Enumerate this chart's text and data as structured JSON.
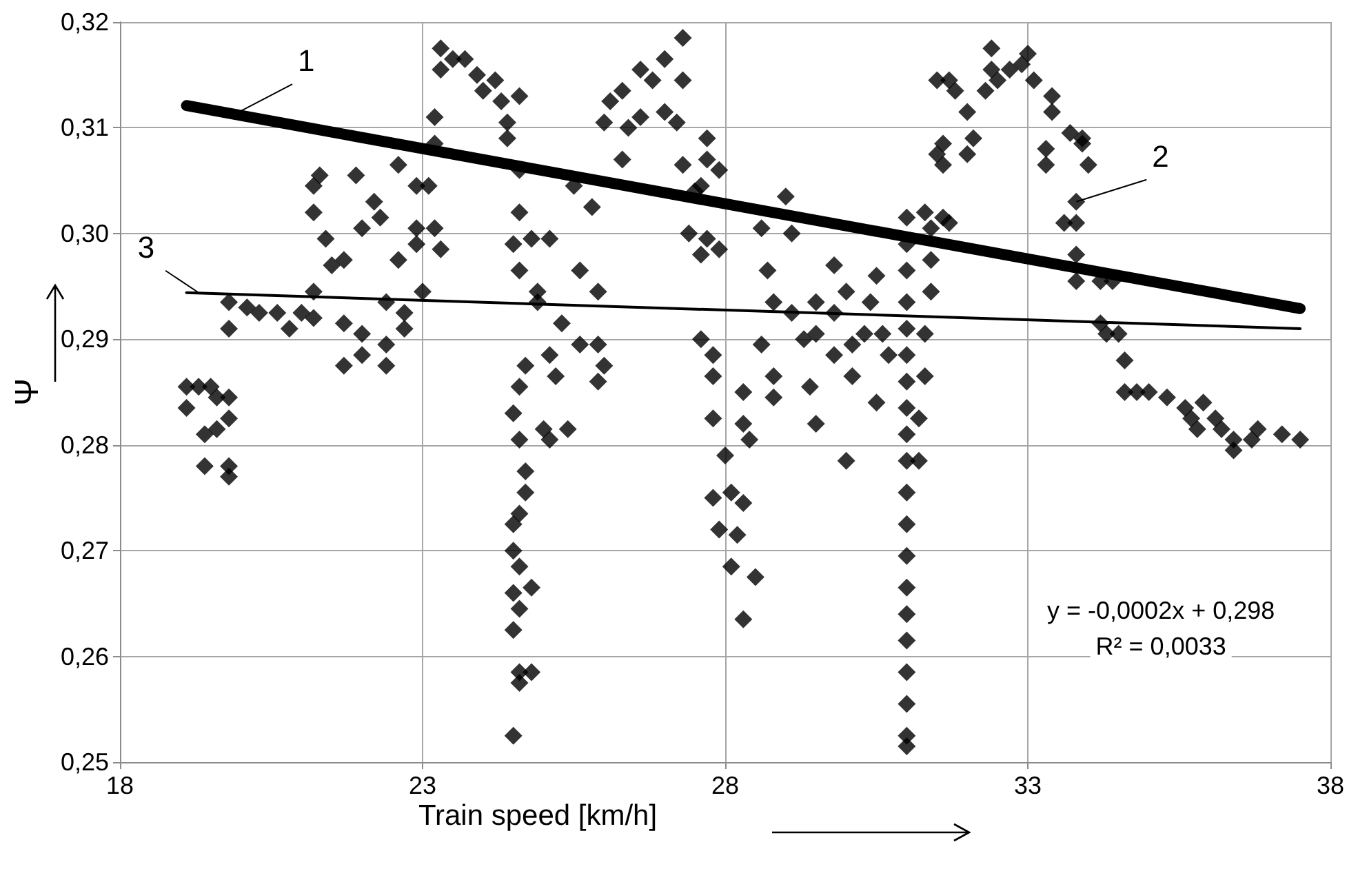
{
  "chart_data": {
    "type": "scatter",
    "xlabel": "Train speed [km/h]",
    "ylabel": "Ψ",
    "xlim": [
      18,
      38
    ],
    "xticks": [
      18,
      23,
      28,
      33,
      38
    ],
    "ylim": [
      0.25,
      0.32
    ],
    "yticks": [
      {
        "value": 0.25,
        "label": "0,25"
      },
      {
        "value": 0.26,
        "label": "0,26"
      },
      {
        "value": 0.27,
        "label": "0,27"
      },
      {
        "value": 0.28,
        "label": "0,28"
      },
      {
        "value": 0.29,
        "label": "0,29"
      },
      {
        "value": 0.3,
        "label": "0,30"
      },
      {
        "value": 0.31,
        "label": "0,31"
      },
      {
        "value": 0.32,
        "label": "0,32"
      }
    ],
    "grid": true,
    "series": [
      {
        "marker": "diamond",
        "color": "#000000",
        "x": [
          19.1,
          19.1,
          19.3,
          19.5,
          19.6,
          19.8,
          19.8,
          19.4,
          19.6,
          19.4,
          19.8,
          19.8,
          19.8,
          19.8,
          20.1,
          20.3,
          20.6,
          20.8,
          21.0,
          21.2,
          21.2,
          21.2,
          21.3,
          21.2,
          21.4,
          21.5,
          21.7,
          21.7,
          21.7,
          21.9,
          22.0,
          22.0,
          22.0,
          22.2,
          22.3,
          22.4,
          22.4,
          22.4,
          22.6,
          22.6,
          22.7,
          22.7,
          22.9,
          22.9,
          23.0,
          22.9,
          23.1,
          23.2,
          23.2,
          23.2,
          23.3,
          23.3,
          23.5,
          23.7,
          23.9,
          24.0,
          23.3,
          24.2,
          24.3,
          24.4,
          24.4,
          24.6,
          24.6,
          24.6,
          24.5,
          24.6,
          24.7,
          24.6,
          24.5,
          24.6,
          24.7,
          24.7,
          24.6,
          24.5,
          24.5,
          24.6,
          24.5,
          24.6,
          24.5,
          24.8,
          24.6,
          24.6,
          24.8,
          24.5,
          24.9,
          24.8,
          24.9,
          25.1,
          25.1,
          25.2,
          25.3,
          25.0,
          25.1,
          25.4,
          25.6,
          25.5,
          25.8,
          25.9,
          25.9,
          25.6,
          26.0,
          25.9,
          26.0,
          26.1,
          26.3,
          26.3,
          26.4,
          26.6,
          26.6,
          26.8,
          27.0,
          27.0,
          27.2,
          27.3,
          27.3,
          27.3,
          27.5,
          27.6,
          27.7,
          27.7,
          27.9,
          27.4,
          27.7,
          27.9,
          27.6,
          27.6,
          27.8,
          27.8,
          27.8,
          28.0,
          27.8,
          27.9,
          28.1,
          28.3,
          28.2,
          28.5,
          28.3,
          28.1,
          28.3,
          28.3,
          28.4,
          28.6,
          28.7,
          28.8,
          28.6,
          28.8,
          28.8,
          29.0,
          29.1,
          29.1,
          29.3,
          29.5,
          29.5,
          29.5,
          29.4,
          29.8,
          29.8,
          29.8,
          30.0,
          30.1,
          30.1,
          30.3,
          30.0,
          30.4,
          30.5,
          30.6,
          30.5,
          30.7,
          31.0,
          31.0,
          31.0,
          31.0,
          31.0,
          31.0,
          31.0,
          31.0,
          31.0,
          31.0,
          31.0,
          31.0,
          31.0,
          31.0,
          31.0,
          31.0,
          31.0,
          31.0,
          31.0,
          31.0,
          31.2,
          31.2,
          31.3,
          31.3,
          31.4,
          31.4,
          31.4,
          31.3,
          31.6,
          31.7,
          31.5,
          31.6,
          31.6,
          31.7,
          31.8,
          31.5,
          32.0,
          32.1,
          32.0,
          32.3,
          32.4,
          32.4,
          32.5,
          32.7,
          32.9,
          33.0,
          33.1,
          33.4,
          33.4,
          33.3,
          33.3,
          33.7,
          33.9,
          34.0,
          33.9,
          33.6,
          33.8,
          33.8,
          33.8,
          33.8,
          34.2,
          34.4,
          34.2,
          34.3,
          34.5,
          34.6,
          34.6,
          34.8,
          35.0,
          35.3,
          35.6,
          35.7,
          35.8,
          35.9,
          36.1,
          36.2,
          36.4,
          36.4,
          36.7,
          36.8,
          37.2,
          37.5
        ],
        "values": [
          0.2855,
          0.2835,
          0.2855,
          0.2855,
          0.2845,
          0.2845,
          0.2825,
          0.281,
          0.2815,
          0.278,
          0.278,
          0.277,
          0.2935,
          0.291,
          0.293,
          0.2925,
          0.2925,
          0.291,
          0.2925,
          0.292,
          0.2945,
          0.3045,
          0.3055,
          0.302,
          0.2995,
          0.297,
          0.2975,
          0.2915,
          0.2875,
          0.3055,
          0.3005,
          0.2905,
          0.2885,
          0.303,
          0.3015,
          0.2935,
          0.2895,
          0.2875,
          0.3065,
          0.2975,
          0.2925,
          0.291,
          0.3005,
          0.299,
          0.2945,
          0.3045,
          0.3045,
          0.3005,
          0.3085,
          0.311,
          0.3155,
          0.3175,
          0.3165,
          0.3165,
          0.315,
          0.3135,
          0.2985,
          0.3145,
          0.3125,
          0.3105,
          0.309,
          0.313,
          0.306,
          0.302,
          0.299,
          0.2965,
          0.2875,
          0.2855,
          0.283,
          0.2805,
          0.2775,
          0.2755,
          0.2735,
          0.2725,
          0.27,
          0.2685,
          0.266,
          0.2645,
          0.2625,
          0.2665,
          0.2585,
          0.2575,
          0.2585,
          0.2525,
          0.2935,
          0.2995,
          0.2945,
          0.2995,
          0.2885,
          0.2865,
          0.2915,
          0.2815,
          0.2805,
          0.2815,
          0.2965,
          0.3045,
          0.3025,
          0.2945,
          0.2895,
          0.2895,
          0.2875,
          0.286,
          0.3105,
          0.3125,
          0.3135,
          0.307,
          0.31,
          0.311,
          0.3155,
          0.3145,
          0.3165,
          0.3115,
          0.3105,
          0.3185,
          0.3145,
          0.3065,
          0.304,
          0.3045,
          0.309,
          0.307,
          0.306,
          0.3,
          0.2995,
          0.2985,
          0.298,
          0.29,
          0.2885,
          0.2865,
          0.2825,
          0.279,
          0.275,
          0.272,
          0.2755,
          0.2745,
          0.2715,
          0.2675,
          0.2635,
          0.2685,
          0.285,
          0.282,
          0.2805,
          0.3005,
          0.2965,
          0.2935,
          0.2895,
          0.2865,
          0.2845,
          0.3035,
          0.3,
          0.2925,
          0.29,
          0.2905,
          0.2935,
          0.282,
          0.2855,
          0.297,
          0.2925,
          0.2885,
          0.2945,
          0.2895,
          0.2865,
          0.2905,
          0.2785,
          0.2935,
          0.296,
          0.2905,
          0.284,
          0.2885,
          0.3015,
          0.299,
          0.2965,
          0.2935,
          0.291,
          0.2885,
          0.286,
          0.2835,
          0.281,
          0.2785,
          0.2755,
          0.2725,
          0.2695,
          0.2665,
          0.264,
          0.2615,
          0.2585,
          0.2555,
          0.2525,
          0.2515,
          0.2785,
          0.2825,
          0.2865,
          0.2905,
          0.2945,
          0.2975,
          0.3005,
          0.302,
          0.3015,
          0.301,
          0.3075,
          0.3065,
          0.3085,
          0.3145,
          0.3135,
          0.3145,
          0.3075,
          0.309,
          0.3115,
          0.3135,
          0.3155,
          0.3175,
          0.3145,
          0.3155,
          0.316,
          0.317,
          0.3145,
          0.313,
          0.3115,
          0.308,
          0.3065,
          0.3095,
          0.309,
          0.3065,
          0.3085,
          0.301,
          0.303,
          0.301,
          0.298,
          0.2955,
          0.2955,
          0.2955,
          0.2915,
          0.2905,
          0.2905,
          0.288,
          0.285,
          0.285,
          0.285,
          0.2845,
          0.2835,
          0.2825,
          0.2815,
          0.284,
          0.2825,
          0.2815,
          0.2805,
          0.2795,
          0.2805,
          0.2815,
          0.281,
          0.2805
        ]
      },
      {
        "type": "line",
        "marker": "none",
        "color": "#000000",
        "x": [
          19.1,
          37.5
        ],
        "values": [
          0.3121,
          0.2929
        ]
      },
      {
        "type": "line",
        "marker": "none",
        "color": "#000000",
        "x": [
          19.1,
          37.5
        ],
        "values": [
          0.2944,
          0.291
        ]
      }
    ],
    "annotations": [
      {
        "text": "1",
        "x": 19.8,
        "y": 0.311
      },
      {
        "text": "2",
        "x": 33.8,
        "y": 0.303
      },
      {
        "text": "3",
        "x": 19.3,
        "y": 0.2944
      },
      "y = -0,0002x + 0,298",
      "R² = 0,0033"
    ]
  }
}
